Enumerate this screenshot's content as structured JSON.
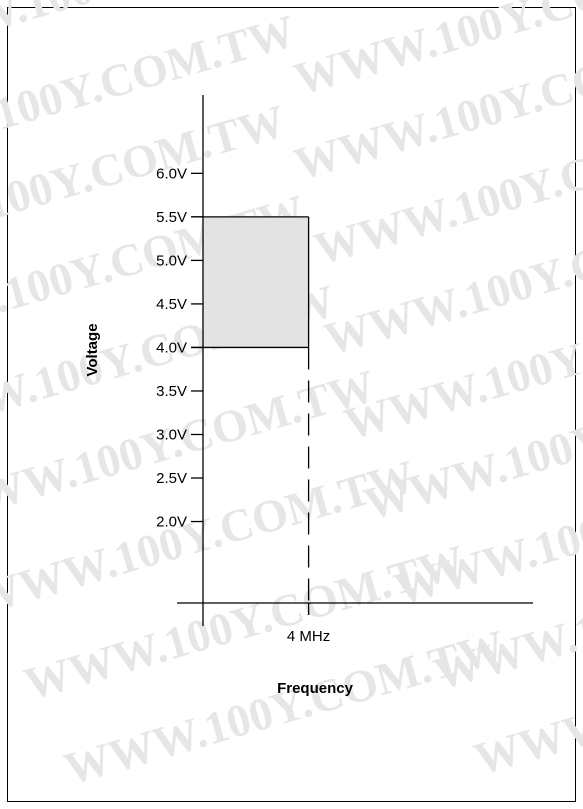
{
  "watermark": {
    "text": "WWW.100Y.COM.TW",
    "color": "#e6e6e6"
  },
  "chart_data": {
    "type": "area",
    "title": "",
    "xlabel": "Frequency",
    "ylabel": "Voltage",
    "x_ticks": [
      {
        "value": 4,
        "label": "4 MHz"
      }
    ],
    "y_ticks": [
      {
        "value": 6.0,
        "label": "6.0V"
      },
      {
        "value": 5.5,
        "label": "5.5V"
      },
      {
        "value": 5.0,
        "label": "5.0V"
      },
      {
        "value": 4.5,
        "label": "4.5V"
      },
      {
        "value": 4.0,
        "label": "4.0V"
      },
      {
        "value": 3.5,
        "label": "3.5V"
      },
      {
        "value": 3.0,
        "label": "3.0V"
      },
      {
        "value": 2.5,
        "label": "2.5V"
      },
      {
        "value": 2.0,
        "label": "2.0V"
      }
    ],
    "xlim": [
      0,
      12.5
    ],
    "ylim": [
      0.8,
      6.9
    ],
    "region": {
      "x": [
        0,
        4
      ],
      "y": [
        4.0,
        5.5
      ],
      "fill": "#e3e3e3",
      "stroke": "#000000"
    },
    "dashed_line": {
      "x": 4,
      "y": [
        0,
        4.0
      ]
    },
    "grid": false,
    "legend": "none"
  }
}
